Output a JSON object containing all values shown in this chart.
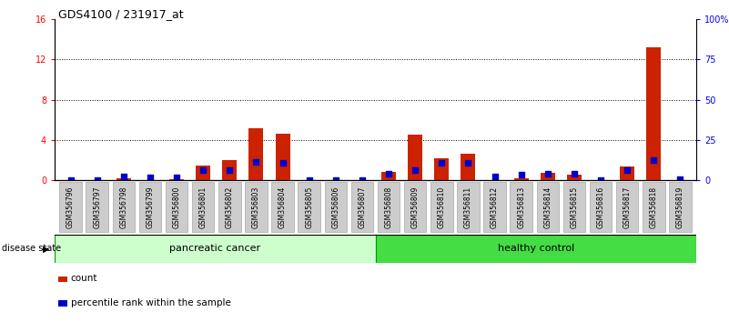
{
  "title": "GDS4100 / 231917_at",
  "samples": [
    "GSM356796",
    "GSM356797",
    "GSM356798",
    "GSM356799",
    "GSM356800",
    "GSM356801",
    "GSM356802",
    "GSM356803",
    "GSM356804",
    "GSM356805",
    "GSM356806",
    "GSM356807",
    "GSM356808",
    "GSM356809",
    "GSM356810",
    "GSM356811",
    "GSM356812",
    "GSM356813",
    "GSM356814",
    "GSM356815",
    "GSM356816",
    "GSM356817",
    "GSM356818",
    "GSM356819"
  ],
  "count": [
    0.0,
    0.0,
    0.2,
    0.0,
    0.1,
    1.5,
    2.0,
    5.2,
    4.6,
    0.0,
    0.0,
    0.0,
    0.8,
    4.5,
    2.2,
    2.6,
    0.0,
    0.2,
    0.7,
    0.6,
    0.0,
    1.4,
    13.2,
    0.0
  ],
  "percentile": [
    0.3,
    0.3,
    2.2,
    1.6,
    1.6,
    6.4,
    6.1,
    11.6,
    10.8,
    0.0,
    0.0,
    0.0,
    4.1,
    6.3,
    11.0,
    10.8,
    2.2,
    3.6,
    4.0,
    3.9,
    0.0,
    6.5,
    12.7,
    0.5
  ],
  "group_labels": [
    "pancreatic cancer",
    "healthy control"
  ],
  "bar_color": "#CC2200",
  "dot_color": "#0000CC",
  "ylim_left": [
    0,
    16
  ],
  "ylim_right": [
    0,
    100
  ],
  "yticks_left": [
    0,
    4,
    8,
    12,
    16
  ],
  "ytick_labels_right": [
    "0",
    "25",
    "50",
    "75",
    "100%"
  ],
  "yticks_right": [
    0,
    25,
    50,
    75,
    100
  ],
  "bg_color": "#FFFFFF",
  "legend_count_label": "count",
  "legend_pct_label": "percentile rank within the sample",
  "panel_color_pc": "#CCFFCC",
  "panel_color_hc": "#44DD44",
  "panel_border_color": "#009900",
  "tick_box_color": "#CCCCCC",
  "tick_box_edge": "#999999"
}
